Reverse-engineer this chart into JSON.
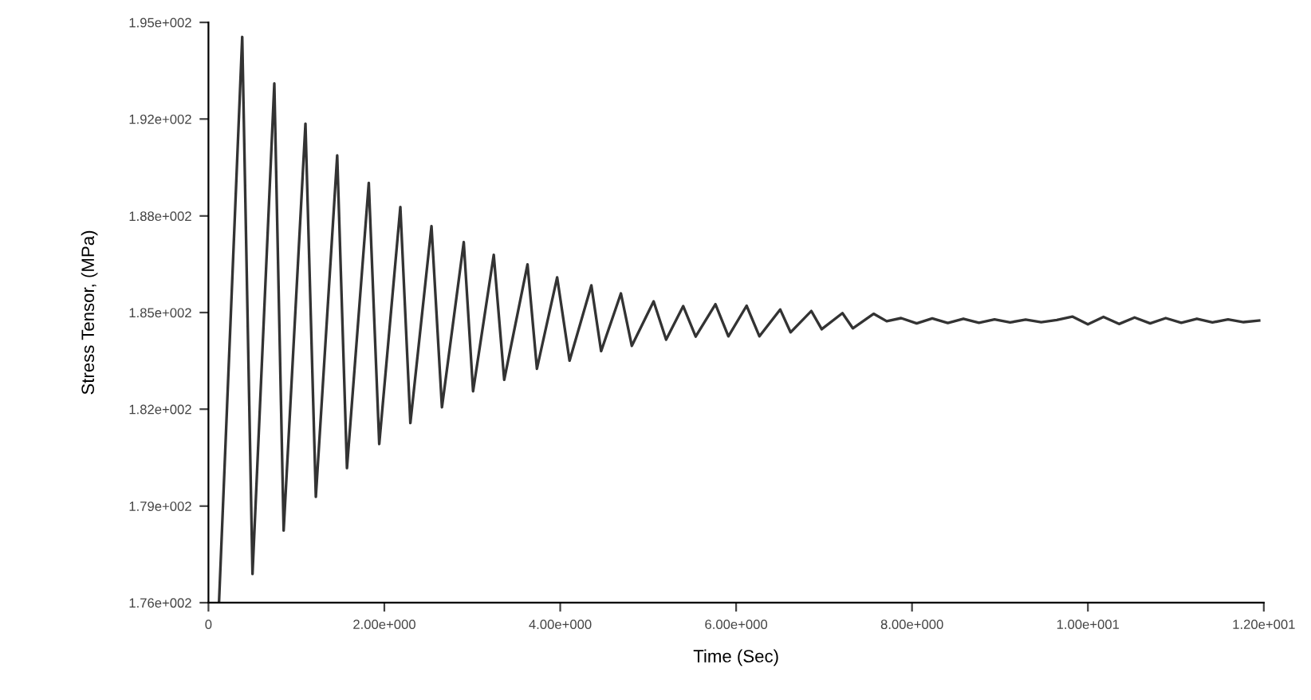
{
  "chart_data": {
    "type": "line",
    "xlabel": "Time (Sec)",
    "ylabel": "Stress Tensor, (MPa)",
    "xlim": [
      0,
      12
    ],
    "ylim": [
      175.9,
      194.7
    ],
    "xticks": [
      0,
      {
        "value": 2,
        "label": "2.00e+000"
      },
      {
        "value": 4,
        "label": "4.00e+000"
      },
      {
        "value": 6,
        "label": "6.00e+000"
      },
      {
        "value": 8,
        "label": "8.00e+000"
      },
      {
        "value": 10,
        "label": "1.00e+001"
      },
      {
        "value": 12,
        "label": "1.20e+001"
      }
    ],
    "yticks": [
      {
        "value": 175.9,
        "label": "1.76e+002"
      },
      {
        "value": 179.03,
        "label": "1.79e+002"
      },
      {
        "value": 182.17,
        "label": "1.82e+002"
      },
      {
        "value": 185.3,
        "label": "1.85e+002"
      },
      {
        "value": 188.43,
        "label": "1.88e+002"
      },
      {
        "value": 191.57,
        "label": "1.92e+002"
      },
      {
        "value": 194.7,
        "label": "1.95e+002"
      }
    ],
    "grid": false,
    "marker": "none",
    "line_style": "solid",
    "series": [
      {
        "color": "#333333",
        "x": [
          0.12,
          0.384,
          0.501,
          0.749,
          0.855,
          1.103,
          1.221,
          1.464,
          1.575,
          1.823,
          1.942,
          2.182,
          2.296,
          2.536,
          2.655,
          2.903,
          3.009,
          3.244,
          3.363,
          3.628,
          3.735,
          3.965,
          4.106,
          4.354,
          4.465,
          4.69,
          4.814,
          5.062,
          5.204,
          5.398,
          5.54,
          5.765,
          5.912,
          6.119,
          6.265,
          6.501,
          6.619,
          6.855,
          6.973,
          7.209,
          7.327,
          7.563,
          7.712,
          7.876,
          8.053,
          8.23,
          8.407,
          8.584,
          8.761,
          8.938,
          9.115,
          9.292,
          9.469,
          9.646,
          9.823,
          10.0,
          10.177,
          10.354,
          10.531,
          10.708,
          10.885,
          11.062,
          11.239,
          11.416,
          11.593,
          11.77,
          11.947
        ],
        "values": [
          175.9,
          194.23,
          176.83,
          192.72,
          178.24,
          191.42,
          179.33,
          190.39,
          180.26,
          189.5,
          181.04,
          188.72,
          181.72,
          188.1,
          182.23,
          187.58,
          182.75,
          187.17,
          183.12,
          186.86,
          183.48,
          186.44,
          183.74,
          186.18,
          184.05,
          185.92,
          184.22,
          185.66,
          184.42,
          185.51,
          184.52,
          185.57,
          184.53,
          185.52,
          184.53,
          185.4,
          184.66,
          185.35,
          184.76,
          185.28,
          184.79,
          185.26,
          185.02,
          185.12,
          184.95,
          185.11,
          184.96,
          185.1,
          184.97,
          185.08,
          184.98,
          185.07,
          184.99,
          185.06,
          185.17,
          184.92,
          185.16,
          184.93,
          185.14,
          184.95,
          185.12,
          184.97,
          185.1,
          184.98,
          185.08,
          184.99,
          185.04
        ]
      }
    ]
  }
}
